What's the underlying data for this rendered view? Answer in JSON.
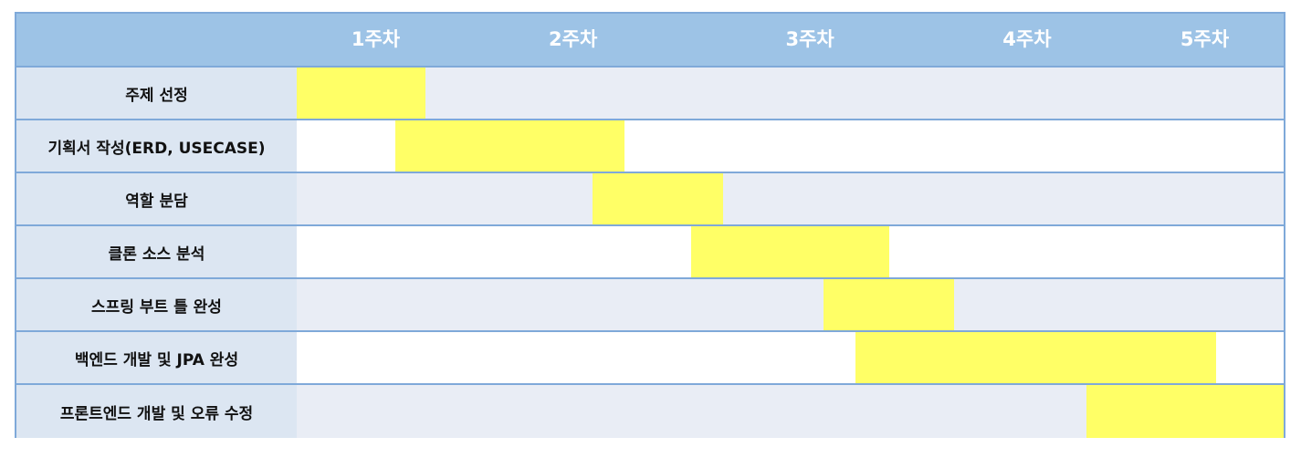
{
  "chart_data": {
    "type": "gantt",
    "title": "",
    "week_labels": [
      "1주차",
      "2주차",
      "3주차",
      "4주차",
      "5주차"
    ],
    "week_label_positions": [
      1,
      2,
      3.2,
      4.3,
      5.2
    ],
    "time_range": [
      0.6,
      5.6
    ],
    "tasks": [
      {
        "name": "주제 선정",
        "start": 0.6,
        "end": 1.25
      },
      {
        "name": "기획서 작성(ERD, USECASE)",
        "start": 1.1,
        "end": 2.26
      },
      {
        "name": "역할 분담",
        "start": 2.1,
        "end": 2.76
      },
      {
        "name": "클론 소스 분석",
        "start": 2.6,
        "end": 3.6
      },
      {
        "name": "스프링 부트 틀 완성",
        "start": 3.27,
        "end": 3.93
      },
      {
        "name": "백엔드 개발 및 JPA 완성",
        "start": 3.43,
        "end": 5.26
      },
      {
        "name": "프론트엔드 개발 및 오류 수정",
        "start": 4.6,
        "end": 5.6
      }
    ],
    "colors": {
      "header": "#9dc3e6",
      "bar": "#ffff66",
      "label_bg": "#dce6f2",
      "row_alt": "#e9edf5",
      "border": "#7fa9d9"
    }
  }
}
